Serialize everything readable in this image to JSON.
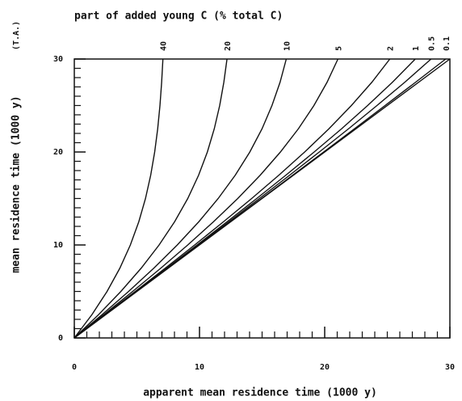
{
  "chart_data": {
    "type": "line",
    "title": "part of added young C (% total C)",
    "xlabel": "apparent mean residence time (1000 y)",
    "ylabel": "mean residence time (1000 y)",
    "ylabel_note": "(T.A.)",
    "xlim": [
      0,
      30
    ],
    "ylim": [
      0,
      30
    ],
    "xticks": [
      0,
      10,
      20,
      30
    ],
    "yticks": [
      0,
      10,
      20,
      30
    ],
    "xticks_minor": [
      1,
      2,
      3,
      4,
      5,
      6,
      7,
      8,
      9,
      11,
      12,
      13,
      14,
      15,
      16,
      17,
      18,
      19,
      21,
      22,
      23,
      24,
      25,
      26,
      27,
      28,
      29
    ],
    "yticks_minor": [
      1,
      2,
      3,
      4,
      5,
      6,
      7,
      8,
      9,
      11,
      12,
      13,
      14,
      15,
      16,
      17,
      18,
      19,
      21,
      22,
      23,
      24,
      25,
      26,
      27,
      28,
      29
    ],
    "color": "#111111",
    "series": [
      {
        "name": "40",
        "x": [
          0,
          1.404,
          2.616,
          3.637,
          4.477,
          5.152,
          5.686,
          6.101,
          6.42,
          6.661,
          6.842,
          6.976,
          7.078
        ],
        "values": [
          0,
          2.5,
          5,
          7.5,
          10,
          12.5,
          15,
          17.5,
          20,
          22.5,
          25,
          27.5,
          30
        ]
      },
      {
        "name": "20",
        "x": [
          0,
          1.934,
          3.719,
          5.339,
          6.773,
          8.013,
          9.063,
          9.927,
          10.628,
          11.181,
          11.613,
          11.944,
          12.197
        ],
        "values": [
          0,
          2.5,
          5,
          7.5,
          10,
          12.5,
          15,
          17.5,
          20,
          22.5,
          25,
          27.5,
          30
        ]
      },
      {
        "name": "10",
        "x": [
          0,
          2.212,
          4.335,
          6.347,
          8.225,
          9.947,
          11.494,
          12.853,
          14.02,
          14.998,
          15.789,
          16.434,
          16.932
        ],
        "values": [
          0,
          2.5,
          5,
          7.5,
          10,
          12.5,
          15,
          17.5,
          20,
          22.5,
          25,
          27.5,
          30
        ]
      },
      {
        "name": "5",
        "x": [
          0,
          2.354,
          4.659,
          6.904,
          9.063,
          11.12,
          13.058,
          14.847,
          16.464,
          17.9,
          19.14,
          20.189,
          21.058
        ],
        "values": [
          0,
          2.5,
          5,
          7.5,
          10,
          12.5,
          15,
          17.5,
          20,
          22.5,
          25,
          27.5,
          30
        ]
      },
      {
        "name": "2",
        "x": [
          0,
          2.442,
          4.862,
          7.256,
          9.613,
          11.919,
          14.169,
          16.334,
          18.4,
          20.34,
          22.133,
          23.766,
          25.203
        ],
        "values": [
          0,
          2.5,
          5,
          7.5,
          10,
          12.5,
          15,
          17.5,
          20,
          22.5,
          25,
          27.5,
          30
        ]
      },
      {
        "name": "1",
        "x": [
          0,
          2.47,
          4.931,
          7.377,
          9.804,
          12.203,
          14.572,
          16.893,
          19.158,
          21.351,
          23.431,
          25.409,
          27.234
        ],
        "values": [
          0,
          2.5,
          5,
          7.5,
          10,
          12.5,
          15,
          17.5,
          20,
          22.5,
          25,
          27.5,
          30
        ]
      },
      {
        "name": "0.5",
        "x": [
          0,
          2.485,
          4.964,
          7.439,
          9.9,
          12.352,
          14.787,
          17.195,
          19.569,
          21.908,
          24.178,
          26.396,
          28.496
        ],
        "values": [
          0,
          2.5,
          5,
          7.5,
          10,
          12.5,
          15,
          17.5,
          20,
          22.5,
          25,
          27.5,
          30
        ]
      },
      {
        "name": "0.1",
        "x": [
          0,
          2.497,
          4.992,
          7.488,
          9.98,
          12.468,
          14.961,
          17.437,
          19.916,
          22.376,
          24.823,
          27.258,
          29.664
        ],
        "values": [
          0,
          2.5,
          5,
          7.5,
          10,
          12.5,
          15,
          17.5,
          20,
          22.5,
          25,
          27.5,
          30
        ]
      },
      {
        "x": [
          0,
          30
        ],
        "values": [
          0,
          30
        ]
      }
    ]
  }
}
